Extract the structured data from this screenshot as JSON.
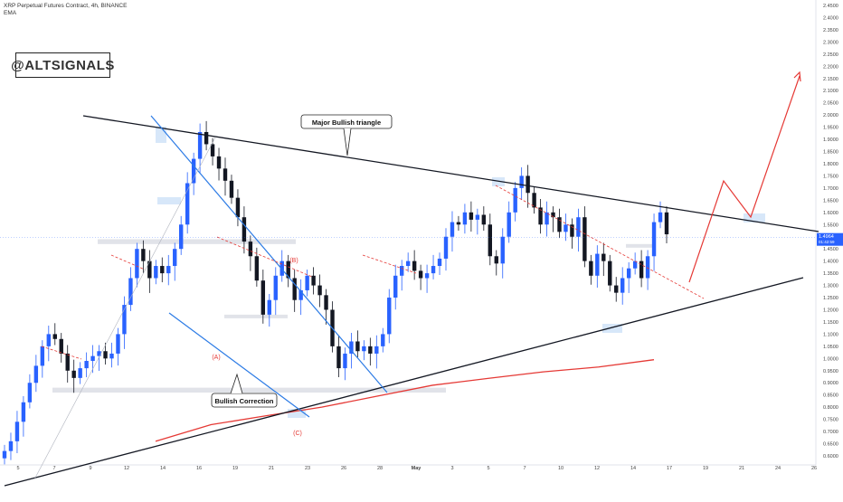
{
  "header": {
    "symbol_line": "XRP Perpetual Futures Contract, 4h, BINANCE",
    "indicator": "EMA"
  },
  "watermark": "@ALTSIGNALS",
  "chart_data": {
    "type": "candlestick",
    "symbol": "XRP Perpetual Futures Contract",
    "interval": "4h",
    "exchange": "BINANCE",
    "ylim": [
      0.6,
      2.45
    ],
    "y_ticks": [
      "2.4500",
      "2.4000",
      "2.3500",
      "2.3000",
      "2.2500",
      "2.2000",
      "2.1500",
      "2.1000",
      "2.0500",
      "2.0000",
      "1.9500",
      "1.9000",
      "1.8500",
      "1.8000",
      "1.7500",
      "1.7000",
      "1.6500",
      "1.6000",
      "1.5500",
      "1.5000",
      "1.4500",
      "1.4000",
      "1.3500",
      "1.3000",
      "1.2500",
      "1.2000",
      "1.1500",
      "1.1000",
      "1.0500",
      "1.0000",
      "0.9500",
      "0.9000",
      "0.8500",
      "0.8000",
      "0.7500",
      "0.7000",
      "0.6500",
      "0.6000"
    ],
    "x_ticks": [
      "5",
      "7",
      "9",
      "12",
      "14",
      "16",
      "19",
      "21",
      "23",
      "26",
      "28",
      "May",
      "3",
      "5",
      "7",
      "10",
      "12",
      "14",
      "17",
      "19",
      "21",
      "24",
      "26"
    ],
    "last_price": "1.4964",
    "last_price_countdown": "01:42:59",
    "close_series": [
      0.62,
      0.66,
      0.74,
      0.82,
      0.9,
      0.97,
      1.05,
      1.1,
      1.08,
      1.02,
      0.95,
      0.92,
      0.96,
      0.99,
      1.01,
      1.03,
      1.0,
      1.02,
      1.1,
      1.22,
      1.33,
      1.45,
      1.4,
      1.33,
      1.38,
      1.35,
      1.38,
      1.45,
      1.55,
      1.72,
      1.82,
      1.93,
      1.88,
      1.83,
      1.78,
      1.73,
      1.66,
      1.58,
      1.48,
      1.42,
      1.32,
      1.18,
      1.24,
      1.34,
      1.4,
      1.33,
      1.24,
      1.28,
      1.34,
      1.3,
      1.26,
      1.2,
      1.05,
      0.96,
      1.02,
      1.07,
      1.03,
      1.05,
      1.02,
      1.05,
      1.1,
      1.25,
      1.34,
      1.38,
      1.4,
      1.36,
      1.33,
      1.35,
      1.38,
      1.41,
      1.5,
      1.56,
      1.55,
      1.6,
      1.57,
      1.59,
      1.55,
      1.42,
      1.39,
      1.5,
      1.6,
      1.7,
      1.75,
      1.68,
      1.62,
      1.55,
      1.6,
      1.58,
      1.52,
      1.55,
      1.5,
      1.58,
      1.4,
      1.34,
      1.43,
      1.4,
      1.3,
      1.27,
      1.33,
      1.37,
      1.4,
      1.33,
      1.42,
      1.56,
      1.6,
      1.51
    ],
    "ema_line": {
      "color": "#e53935",
      "points": [
        [
          0.56,
          0.66
        ],
        [
          0.62,
          0.728
        ],
        [
          0.72,
          0.765
        ],
        [
          0.85,
          0.8
        ],
        [
          1.05,
          0.845
        ],
        [
          1.3,
          0.89
        ],
        [
          1.5,
          0.918
        ],
        [
          1.65,
          0.945
        ],
        [
          1.75,
          0.965
        ],
        [
          1.86,
          0.995
        ]
      ]
    },
    "support_resistance_zones": [
      {
        "price_low": 1.47,
        "price_high": 1.49
      },
      {
        "price_low": 0.86,
        "price_high": 0.88
      },
      {
        "price_low": 1.17,
        "price_high": 1.18
      },
      {
        "price_low": 1.46,
        "price_high": 1.47
      }
    ],
    "annotations": {
      "triangle_label": "Major Bullish triangle",
      "correction_label": "Bullish Correction",
      "wave_a": "(A)",
      "wave_b": "(B)",
      "wave_c": "(C)"
    },
    "colors": {
      "up_candle": "#2962ff",
      "down_candle": "#131722",
      "trendline": "#131722",
      "channel": "#2c7be5",
      "projection": "#e53935",
      "zone": "#d9dce3",
      "highlight": "#bcd7f5"
    }
  }
}
